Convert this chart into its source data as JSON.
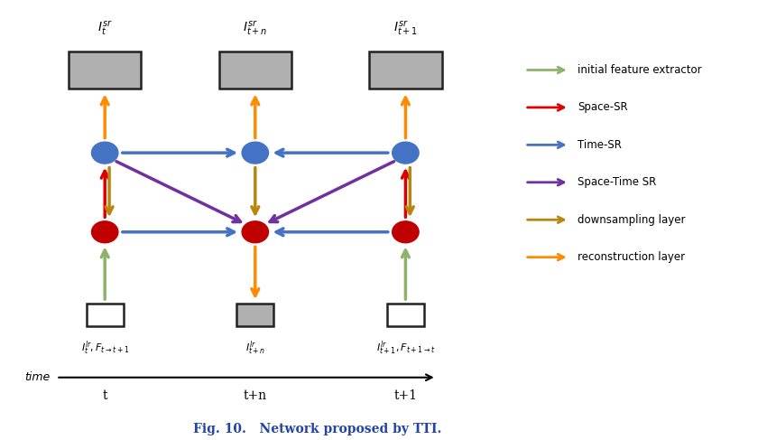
{
  "bg_color": "#ffffff",
  "fig_width": 8.4,
  "fig_height": 4.87,
  "dpi": 100,
  "blue_color": "#4472C4",
  "red_color": "#C00000",
  "green_color": "#8db36a",
  "gold_color": "#b8860b",
  "orange_color": "#FF8C00",
  "purple_color": "#7030A0",
  "red_arrow_color": "#dd0000",
  "box_sr_fill": "#b0b0b0",
  "box_sr_edge": "#222222",
  "box_lr_fills": [
    "#ffffff",
    "#b0b0b0",
    "#ffffff"
  ],
  "box_lr_edge": "#222222",
  "legend_items": [
    {
      "color": "#8db36a",
      "label": "initial feature extractor"
    },
    {
      "color": "#dd0000",
      "label": "Space-SR"
    },
    {
      "color": "#4472C4",
      "label": "Time-SR"
    },
    {
      "color": "#7030A0",
      "label": "Space-Time SR"
    },
    {
      "color": "#b8860b",
      "label": "downsampling layer"
    },
    {
      "color": "#FF8C00",
      "label": "reconstruction layer"
    }
  ],
  "caption": "Fig. 10.   Network proposed by TTI.",
  "caption_color": "#2244aa",
  "time_label": "time"
}
